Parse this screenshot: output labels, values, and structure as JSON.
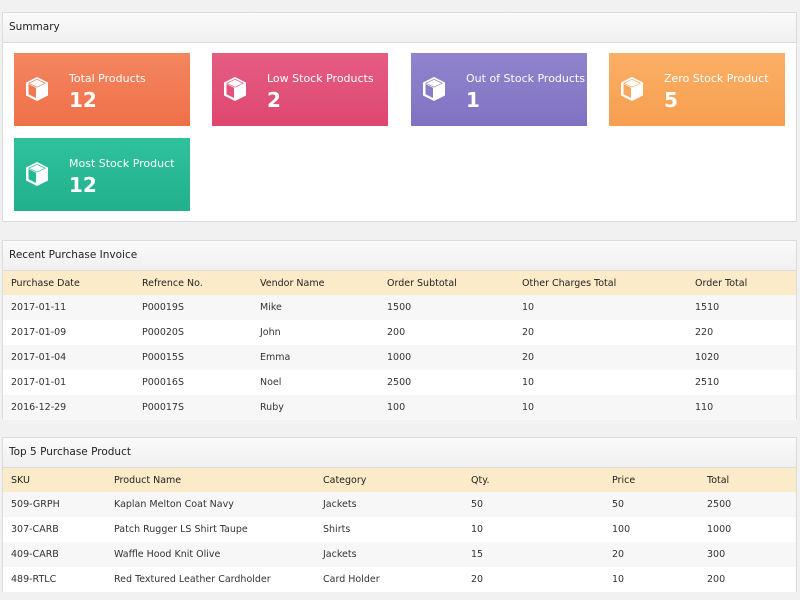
{
  "summary": {
    "title": "Summary",
    "tiles": [
      {
        "label": "Total Products",
        "value": "12",
        "color": "#f27a52",
        "icon": "cube-icon"
      },
      {
        "label": "Low Stock Products",
        "value": "2",
        "color": "#e2527a",
        "icon": "cube-icon"
      },
      {
        "label": "Out of Stock Products",
        "value": "1",
        "color": "#8a7bc8",
        "icon": "cube-icon"
      },
      {
        "label": "Zero Stock Product",
        "value": "5",
        "color": "#f9a75b",
        "icon": "cube-icon"
      },
      {
        "label": "Most Stock Product",
        "value": "12",
        "color": "#27b896",
        "icon": "cube-icon"
      }
    ]
  },
  "invoice": {
    "title": "Recent Purchase Invoice",
    "columns": [
      "Purchase Date",
      "Refrence No.",
      "Vendor Name",
      "Order Subtotal",
      "Other Charges Total",
      "Order Total"
    ],
    "rows": [
      [
        "2017-01-11",
        "P00019S",
        "Mike",
        "1500",
        "10",
        "1510"
      ],
      [
        "2017-01-09",
        "P00020S",
        "John",
        "200",
        "20",
        "220"
      ],
      [
        "2017-01-04",
        "P00015S",
        "Emma",
        "1000",
        "20",
        "1020"
      ],
      [
        "2017-01-01",
        "P00016S",
        "Noel",
        "2500",
        "10",
        "2510"
      ],
      [
        "2016-12-29",
        "P00017S",
        "Ruby",
        "100",
        "10",
        "110"
      ]
    ]
  },
  "products": {
    "title": "Top 5 Purchase Product",
    "columns": [
      "SKU",
      "Product Name",
      "Category",
      "Qty.",
      "Price",
      "Total"
    ],
    "rows": [
      [
        "509-GRPH",
        "Kaplan Melton Coat Navy",
        "Jackets",
        "50",
        "50",
        "2500"
      ],
      [
        "307-CARB",
        "Patch Rugger LS Shirt Taupe",
        "Shirts",
        "10",
        "100",
        "1000"
      ],
      [
        "409-CARB",
        "Waffle Hood Knit Olive",
        "Jackets",
        "15",
        "20",
        "300"
      ],
      [
        "489-RTLC",
        "Red Textured Leather Cardholder",
        "Card Holder",
        "20",
        "10",
        "200"
      ]
    ]
  }
}
